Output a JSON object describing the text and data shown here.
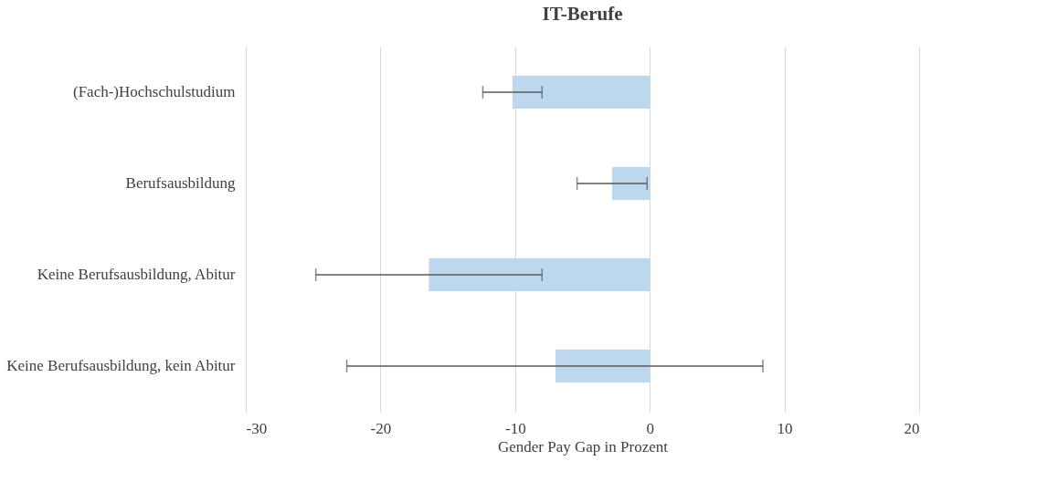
{
  "chart_data": {
    "type": "bar",
    "orientation": "horizontal",
    "title": "IT-Berufe",
    "xlabel": "Gender Pay Gap in Prozent",
    "categories": [
      "(Fach-)Hochschulstudium",
      "Berufsausbildung",
      "Keine Berufsausbildung, Abitur",
      "Keine Berufsausbildung, kein Abitur"
    ],
    "values": [
      -10.2,
      -2.8,
      -16.4,
      -7.0
    ],
    "errors": [
      [
        -12.4,
        -8.0
      ],
      [
        -5.4,
        -0.2
      ],
      [
        -24.8,
        -8.0
      ],
      [
        -22.5,
        8.4
      ]
    ],
    "color": "#bdd7ee",
    "xlim": [
      -30,
      20
    ],
    "xticks": [
      -30,
      -20,
      -10,
      0,
      10,
      20
    ],
    "grid": "x"
  }
}
